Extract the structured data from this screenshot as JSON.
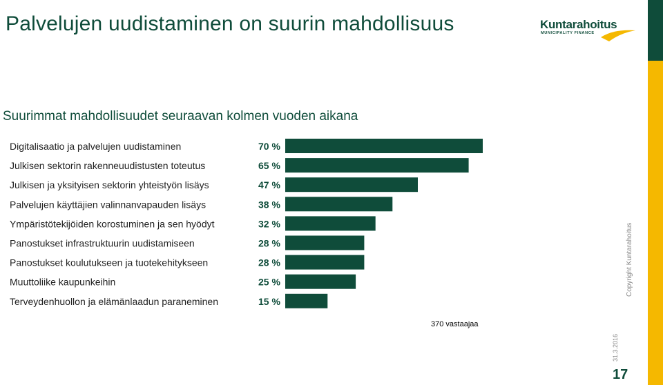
{
  "slide": {
    "title": "Palvelujen uudistaminen on suurin mahdollisuus",
    "subtitle": "Suurimmat mahdollisuudet seuraavan kolmen vuoden aikana",
    "respondents": "370 vastaajaa",
    "copyright": "Copyright Kuntarahoitus",
    "date": "31.3.2016",
    "page_number": "17"
  },
  "logo": {
    "name": "Kuntarahoitus",
    "tagline": "MUNICIPALITY FINANCE"
  },
  "colors": {
    "brand_green": "#0f4c3a",
    "accent_yellow": "#f5b800"
  },
  "chart_data": {
    "type": "bar",
    "orientation": "horizontal",
    "categories": [
      "Digitalisaatio ja palvelujen uudistaminen",
      "Julkisen sektorin rakenneuudistusten toteutus",
      "Julkisen ja yksityisen sektorin yhteistyön lisäys",
      "Palvelujen käyttäjien valinnanvapauden lisäys",
      "Ympäristötekijöiden korostuminen ja sen hyödyt",
      "Panostukset infrastruktuurin uudistamiseen",
      "Panostukset koulutukseen ja tuotekehitykseen",
      "Muuttoliike kaupunkeihin",
      "Terveydenhuollon ja elämänlaadun paraneminen"
    ],
    "values": [
      70,
      65,
      47,
      38,
      32,
      28,
      28,
      25,
      15
    ],
    "value_labels": [
      "70 %",
      "65 %",
      "47 %",
      "38 %",
      "32 %",
      "28 %",
      "28 %",
      "25 %",
      "15 %"
    ],
    "unit": "%",
    "bar_color": "#0f4c3a",
    "grid": false,
    "legend": "none"
  }
}
